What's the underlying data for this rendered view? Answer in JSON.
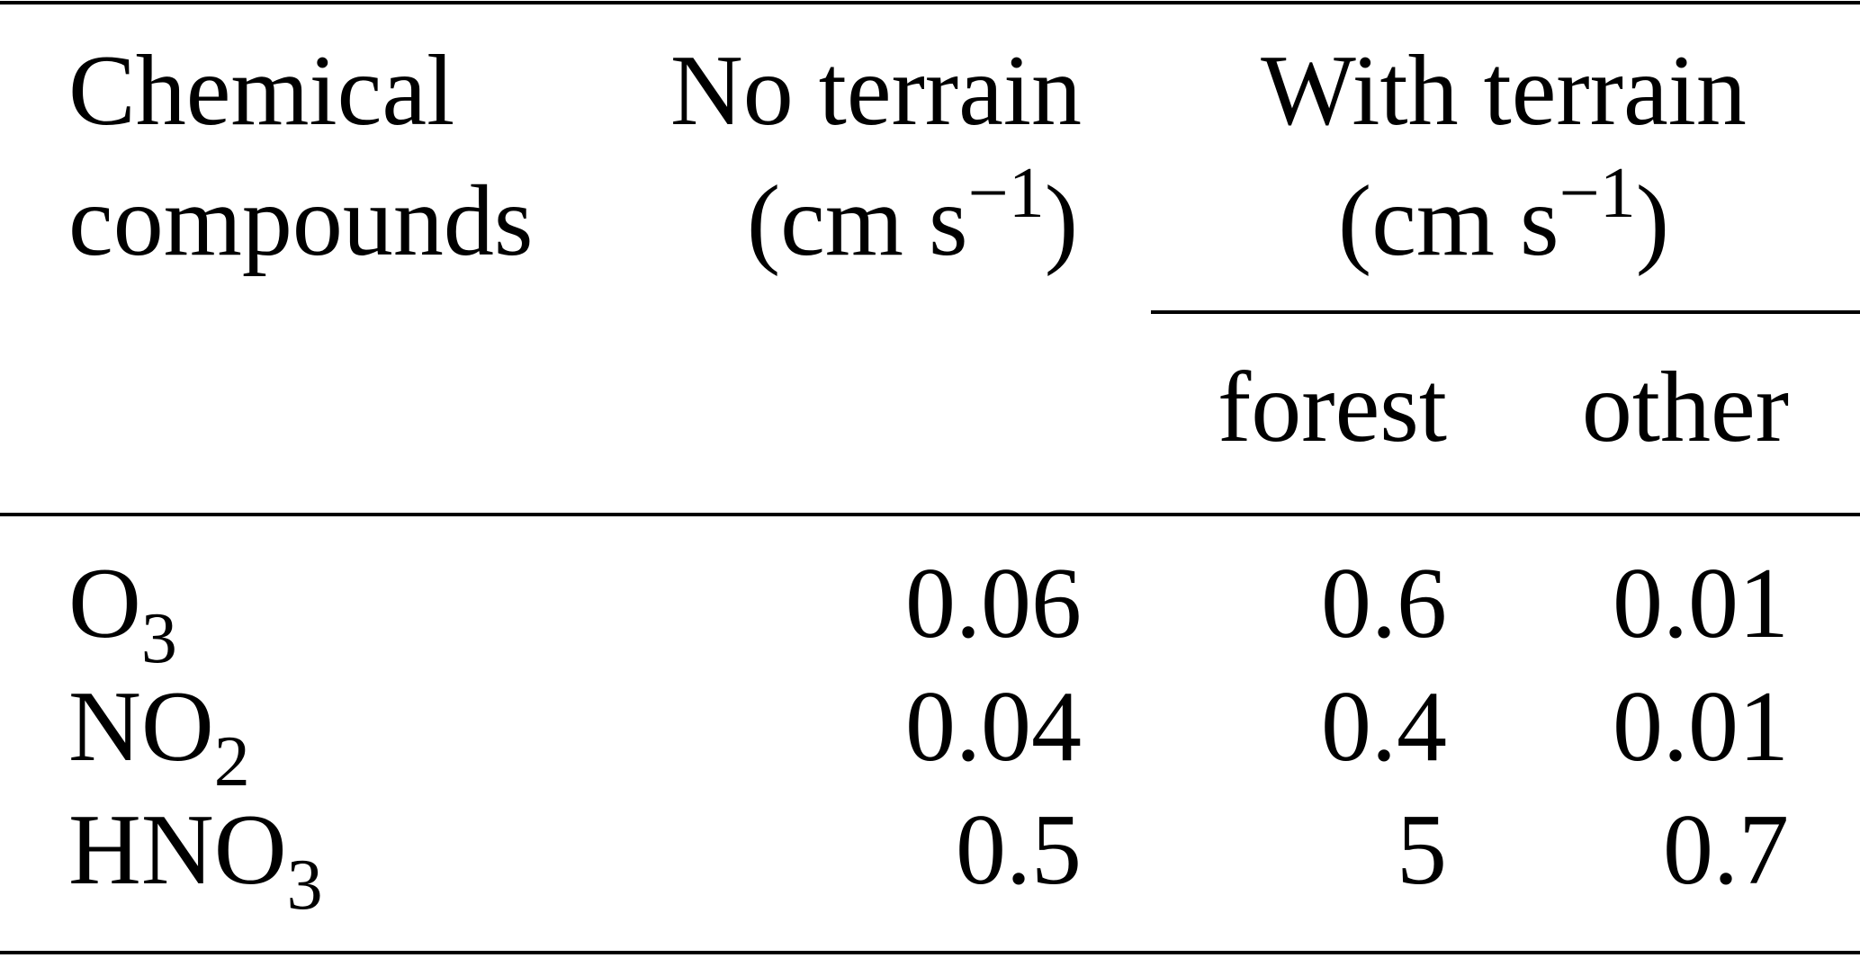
{
  "table": {
    "header": {
      "compound": [
        "Chemical",
        "compounds"
      ],
      "no_terrain": {
        "title": "No terrain",
        "unit": {
          "text": "(cm s",
          "sup": "−1",
          "tail": ")"
        }
      },
      "with_terrain": {
        "title": "With terrain",
        "unit": {
          "text": "(cm s",
          "sup": "−1",
          "tail": ")"
        }
      },
      "subcolumns": [
        "forest",
        "other"
      ]
    },
    "rows": [
      {
        "compound": {
          "base": "O",
          "sub": "3"
        },
        "values": [
          "0.06",
          "0.6",
          "0.01"
        ]
      },
      {
        "compound": {
          "base": "NO",
          "sub": "2"
        },
        "values": [
          "0.04",
          "0.4",
          "0.01"
        ]
      },
      {
        "compound": {
          "base": "HNO",
          "sub": "3"
        },
        "values": [
          "0.5",
          "5",
          "0.7"
        ]
      }
    ]
  }
}
